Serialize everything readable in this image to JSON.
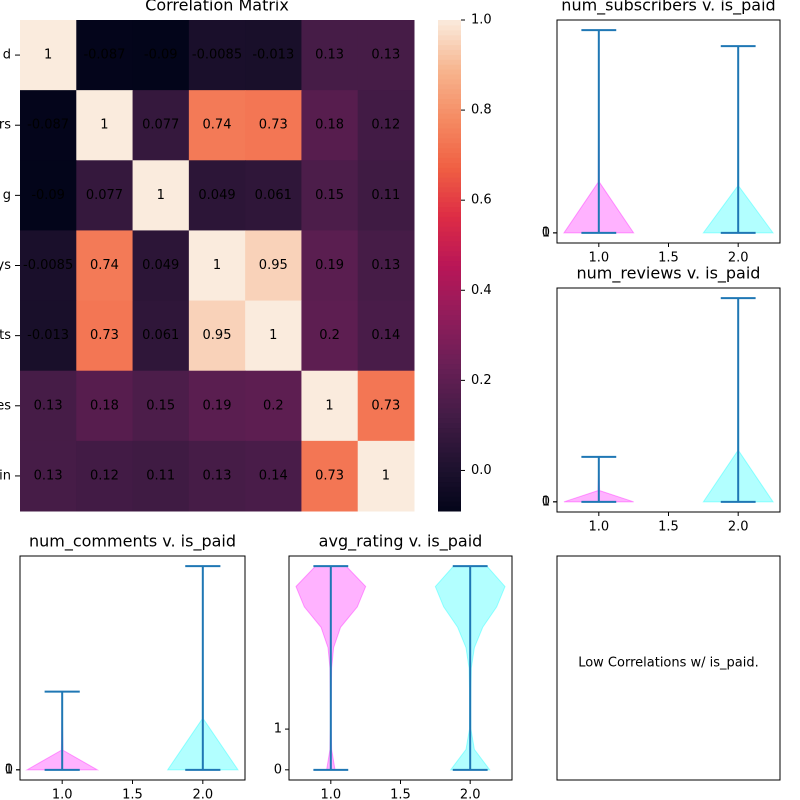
{
  "chart_data": [
    {
      "type": "heatmap",
      "title": "Correlation Matrix",
      "row_labels": [
        "d",
        "rs",
        "g",
        "ys",
        "ts",
        "es",
        "in"
      ],
      "values": [
        [
          1,
          -0.087,
          -0.09,
          -0.0085,
          -0.013,
          0.13,
          0.13
        ],
        [
          -0.087,
          1,
          0.077,
          0.74,
          0.73,
          0.18,
          0.12
        ],
        [
          -0.09,
          0.077,
          1,
          0.049,
          0.061,
          0.15,
          0.11
        ],
        [
          -0.0085,
          0.74,
          0.049,
          1,
          0.95,
          0.19,
          0.13
        ],
        [
          -0.013,
          0.73,
          0.061,
          0.95,
          1,
          0.2,
          0.14
        ],
        [
          0.13,
          0.18,
          0.15,
          0.19,
          0.2,
          1,
          0.73
        ],
        [
          0.13,
          0.12,
          0.11,
          0.13,
          0.14,
          0.73,
          1
        ]
      ],
      "clim": [
        -0.09,
        1
      ],
      "cticks": [
        {
          "value": 0,
          "label": "0.0"
        },
        {
          "value": 0.2,
          "label": "0.2"
        },
        {
          "value": 0.4,
          "label": "0.4"
        },
        {
          "value": 0.6,
          "label": "0.6"
        },
        {
          "value": 0.8,
          "label": "0.8"
        },
        {
          "value": 1,
          "label": "1.0"
        }
      ],
      "cmap": [
        "#03051a",
        "#221331",
        "#451c47",
        "#6a1f56",
        "#921c5b",
        "#b91657",
        "#dd2c45",
        "#f06043",
        "#f58b63",
        "#f7b58f",
        "#faebdd"
      ]
    },
    {
      "type": "violin",
      "title": "num_subscribers v. is_paid",
      "line_color": "#1f77b4",
      "groups": [
        {
          "x": 1,
          "min": 0,
          "max": 268923,
          "color": "#ff00ff",
          "density": [
            0.25,
            0.004,
            0.002,
            0.001,
            0.0005
          ]
        },
        {
          "x": 2,
          "min": 0,
          "max": 247730,
          "color": "#00ffff",
          "density": [
            0.25,
            0.004,
            0.002,
            0.001,
            0.0005
          ]
        }
      ],
      "xlim": [
        0.7,
        2.3
      ],
      "xticks": [
        {
          "value": 1,
          "label": "1.0"
        },
        {
          "value": 1.5,
          "label": "1.5"
        },
        {
          "value": 2,
          "label": "2.0"
        }
      ],
      "ylim": [
        -13446,
        282369
      ],
      "yticks": [
        0,
        1
      ]
    },
    {
      "type": "violin",
      "title": "num_reviews v. is_paid",
      "line_color": "#1f77b4",
      "groups": [
        {
          "x": 1,
          "min": 0,
          "max": 6054,
          "color": "#ff00ff",
          "density": [
            0.25,
            0.006,
            0.003,
            0.001,
            0.0005
          ]
        },
        {
          "x": 2,
          "min": 0,
          "max": 27445,
          "color": "#00ffff",
          "density": [
            0.25,
            0.004,
            0.002,
            0.001,
            0.0005
          ]
        }
      ],
      "xlim": [
        0.7,
        2.3
      ],
      "xticks": [
        {
          "value": 1,
          "label": "1.0"
        },
        {
          "value": 1.5,
          "label": "1.5"
        },
        {
          "value": 2,
          "label": "2.0"
        }
      ],
      "ylim": [
        -1372,
        28817
      ],
      "yticks": [
        0,
        1
      ]
    },
    {
      "type": "violin",
      "title": "num_comments v. is_paid",
      "line_color": "#1f77b4",
      "groups": [
        {
          "x": 1,
          "min": 0,
          "max": 3074,
          "color": "#ff00ff",
          "density": [
            0.25,
            0.006,
            0.003,
            0.001,
            0.0005
          ]
        },
        {
          "x": 2,
          "min": 0,
          "max": 8000,
          "color": "#00ffff",
          "density": [
            0.25,
            0.004,
            0.002,
            0.001,
            0.0005
          ]
        }
      ],
      "xlim": [
        0.7,
        2.3
      ],
      "xticks": [
        {
          "value": 1,
          "label": "1.0"
        },
        {
          "value": 1.5,
          "label": "1.5"
        },
        {
          "value": 2,
          "label": "2.0"
        }
      ],
      "ylim": [
        -400,
        8400
      ],
      "yticks": [
        0,
        1
      ]
    },
    {
      "type": "violin",
      "title": "avg_rating v. is_paid",
      "line_color": "#1f77b4",
      "groups": [
        {
          "x": 1,
          "min": 0,
          "max": 5,
          "color": "#ff00ff",
          "density": [
            0.03,
            0.006,
            0.003,
            0.003,
            0.004,
            0.006,
            0.02,
            0.07,
            0.19,
            0.25,
            0.11
          ]
        },
        {
          "x": 2,
          "min": 0,
          "max": 5,
          "color": "#00ffff",
          "density": [
            0.14,
            0.03,
            0.005,
            0.004,
            0.005,
            0.008,
            0.03,
            0.09,
            0.19,
            0.25,
            0.12
          ]
        }
      ],
      "xlim": [
        0.7,
        2.3
      ],
      "xticks": [
        {
          "value": 1,
          "label": "1.0"
        },
        {
          "value": 1.5,
          "label": "1.5"
        },
        {
          "value": 2,
          "label": "2.0"
        }
      ],
      "ylim": [
        -0.25,
        5.25
      ],
      "yticks": [
        0,
        1
      ]
    }
  ],
  "note_panel": {
    "text": "Low Correlations w/ is_paid."
  }
}
